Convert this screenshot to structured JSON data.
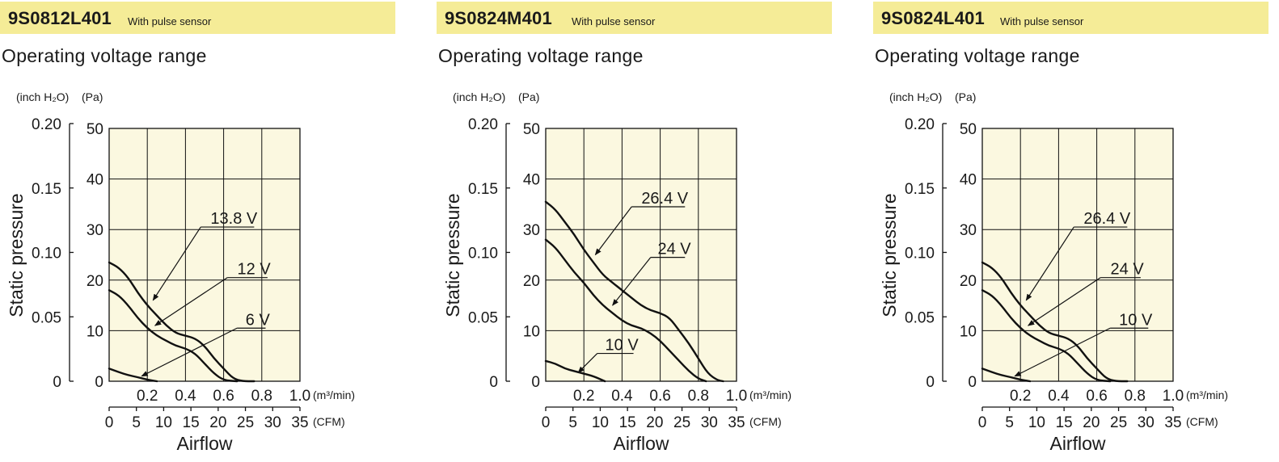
{
  "panels": [
    {
      "model": "9S0812L401",
      "subtitle": "With pulse sensor",
      "section_title": "Operating voltage range"
    },
    {
      "model": "9S0824M401",
      "subtitle": "With pulse sensor",
      "section_title": "Operating voltage range"
    },
    {
      "model": "9S0824L401",
      "subtitle": "With pulse sensor",
      "section_title": "Operating voltage range"
    }
  ],
  "colors": {
    "header_bg": "#f5ec97",
    "plot_bg": "#fbf8e0",
    "line": "#111111"
  },
  "chart_data": [
    {
      "type": "line",
      "ylabel": "Static pressure",
      "xlabel": "Airflow",
      "x_units": [
        "(m³/min)",
        "(CFM)"
      ],
      "y_units": [
        "(inch H₂O)",
        "(Pa)"
      ],
      "x_ticks_m3": [
        "0.2",
        "0.4",
        "0.6",
        "0.8",
        "1.0"
      ],
      "x_ticks_cfm": [
        "0",
        "5",
        "10",
        "15",
        "20",
        "25",
        "30",
        "35"
      ],
      "y_ticks_pa": [
        "0",
        "10",
        "20",
        "30",
        "40",
        "50"
      ],
      "y_ticks_inch": [
        "0",
        "0.05",
        "0.10",
        "0.15",
        "0.20"
      ],
      "xlim": [
        0,
        1.0
      ],
      "ylim": [
        0,
        50
      ],
      "grid": true,
      "series": [
        {
          "name": "13.8 V",
          "label_at": [
            0.48,
            30.5
          ],
          "label_end": [
            0.76,
            30.5
          ],
          "arrow_to": [
            0.23,
            16.0
          ],
          "x": [
            0,
            0.05,
            0.1,
            0.15,
            0.2,
            0.25,
            0.3,
            0.35,
            0.4,
            0.45,
            0.5,
            0.55,
            0.6,
            0.65,
            0.7,
            0.76
          ],
          "values": [
            23.5,
            22.5,
            20.5,
            17.5,
            15.0,
            13.0,
            11.0,
            9.5,
            9.0,
            8.5,
            7.0,
            4.5,
            2.5,
            0.5,
            0,
            0
          ]
        },
        {
          "name": "12 V",
          "label_at": [
            0.62,
            20.5
          ],
          "label_end": [
            0.83,
            20.5
          ],
          "arrow_to": [
            0.24,
            11.0
          ],
          "x": [
            0,
            0.05,
            0.1,
            0.15,
            0.2,
            0.25,
            0.3,
            0.35,
            0.4,
            0.45,
            0.5,
            0.55,
            0.6,
            0.67
          ],
          "values": [
            18.0,
            17.0,
            15.0,
            12.5,
            10.5,
            9.0,
            8.0,
            7.0,
            6.5,
            5.5,
            3.5,
            1.5,
            0.2,
            0
          ]
        },
        {
          "name": "6 V",
          "label_at": [
            0.67,
            10.5
          ],
          "label_end": [
            0.82,
            10.5
          ],
          "arrow_to": [
            0.17,
            1.0
          ],
          "x": [
            0,
            0.05,
            0.1,
            0.15,
            0.2,
            0.25
          ],
          "values": [
            2.5,
            1.8,
            1.2,
            0.8,
            0.3,
            0
          ]
        }
      ]
    },
    {
      "type": "line",
      "ylabel": "Static pressure",
      "xlabel": "Airflow",
      "x_units": [
        "(m³/min)",
        "(CFM)"
      ],
      "y_units": [
        "(inch H₂O)",
        "(Pa)"
      ],
      "x_ticks_m3": [
        "0.2",
        "0.4",
        "0.6",
        "0.8",
        "1.0"
      ],
      "x_ticks_cfm": [
        "0",
        "5",
        "10",
        "15",
        "20",
        "25",
        "30",
        "35"
      ],
      "y_ticks_pa": [
        "0",
        "10",
        "20",
        "30",
        "40",
        "50"
      ],
      "y_ticks_inch": [
        "0",
        "0.05",
        "0.10",
        "0.15",
        "0.20"
      ],
      "xlim": [
        0,
        1.0
      ],
      "ylim": [
        0,
        50
      ],
      "grid": true,
      "series": [
        {
          "name": "26.4 V",
          "label_at": [
            0.45,
            34.5
          ],
          "label_end": [
            0.73,
            34.5
          ],
          "arrow_to": [
            0.26,
            25.0
          ],
          "x": [
            0,
            0.05,
            0.1,
            0.15,
            0.2,
            0.25,
            0.3,
            0.35,
            0.4,
            0.45,
            0.5,
            0.55,
            0.6,
            0.65,
            0.7,
            0.75,
            0.8,
            0.85,
            0.9,
            0.93
          ],
          "values": [
            35.5,
            34.0,
            31.5,
            29.0,
            26.0,
            23.5,
            21.0,
            19.5,
            18.0,
            16.5,
            15.0,
            14.0,
            13.5,
            12.5,
            10.0,
            7.5,
            4.5,
            1.5,
            0.2,
            0
          ]
        },
        {
          "name": "24 V",
          "label_at": [
            0.55,
            24.5
          ],
          "label_end": [
            0.73,
            24.5
          ],
          "arrow_to": [
            0.35,
            15.0
          ],
          "x": [
            0,
            0.05,
            0.1,
            0.15,
            0.2,
            0.25,
            0.3,
            0.35,
            0.4,
            0.45,
            0.5,
            0.55,
            0.6,
            0.65,
            0.7,
            0.75,
            0.8,
            0.84
          ],
          "values": [
            28.0,
            26.5,
            24.0,
            21.5,
            19.5,
            17.0,
            15.0,
            13.5,
            12.0,
            11.0,
            10.5,
            9.5,
            8.0,
            6.0,
            4.0,
            2.0,
            0.5,
            0
          ]
        },
        {
          "name": "10 V",
          "label_at": [
            0.27,
            5.5
          ],
          "label_end": [
            0.46,
            5.5
          ],
          "arrow_to": [
            0.17,
            1.7
          ],
          "x": [
            0,
            0.05,
            0.1,
            0.15,
            0.2,
            0.25,
            0.31
          ],
          "values": [
            4.0,
            3.5,
            2.5,
            2.0,
            1.5,
            1.0,
            0
          ]
        }
      ]
    },
    {
      "type": "line",
      "ylabel": "Static pressure",
      "xlabel": "Airflow",
      "x_units": [
        "(m³/min)",
        "(CFM)"
      ],
      "y_units": [
        "(inch H₂O)",
        "(Pa)"
      ],
      "x_ticks_m3": [
        "0.2",
        "0.4",
        "0.6",
        "0.8",
        "1.0"
      ],
      "x_ticks_cfm": [
        "0",
        "5",
        "10",
        "15",
        "20",
        "25",
        "30",
        "35"
      ],
      "y_ticks_pa": [
        "0",
        "10",
        "20",
        "30",
        "40",
        "50"
      ],
      "y_ticks_inch": [
        "0",
        "0.05",
        "0.10",
        "0.15",
        "0.20"
      ],
      "xlim": [
        0,
        1.0
      ],
      "ylim": [
        0,
        50
      ],
      "grid": true,
      "series": [
        {
          "name": "26.4 V",
          "label_at": [
            0.48,
            30.5
          ],
          "label_end": [
            0.76,
            30.5
          ],
          "arrow_to": [
            0.23,
            16.0
          ],
          "x": [
            0,
            0.05,
            0.1,
            0.15,
            0.2,
            0.25,
            0.3,
            0.35,
            0.4,
            0.45,
            0.5,
            0.55,
            0.6,
            0.65,
            0.7,
            0.76
          ],
          "values": [
            23.5,
            22.5,
            20.5,
            17.5,
            15.0,
            13.0,
            11.0,
            9.5,
            9.0,
            8.5,
            7.0,
            4.5,
            2.5,
            0.5,
            0,
            0
          ]
        },
        {
          "name": "24 V",
          "label_at": [
            0.62,
            20.5
          ],
          "label_end": [
            0.83,
            20.5
          ],
          "arrow_to": [
            0.24,
            11.0
          ],
          "x": [
            0,
            0.05,
            0.1,
            0.15,
            0.2,
            0.25,
            0.3,
            0.35,
            0.4,
            0.45,
            0.5,
            0.55,
            0.6,
            0.67
          ],
          "values": [
            18.0,
            17.0,
            15.0,
            12.5,
            10.5,
            9.0,
            8.0,
            7.0,
            6.5,
            5.5,
            3.5,
            1.5,
            0.2,
            0
          ]
        },
        {
          "name": "10 V",
          "label_at": [
            0.67,
            10.5
          ],
          "label_end": [
            0.87,
            10.5
          ],
          "arrow_to": [
            0.17,
            1.0
          ],
          "x": [
            0,
            0.05,
            0.1,
            0.15,
            0.2,
            0.25
          ],
          "values": [
            2.5,
            1.8,
            1.2,
            0.8,
            0.3,
            0
          ]
        }
      ]
    }
  ]
}
